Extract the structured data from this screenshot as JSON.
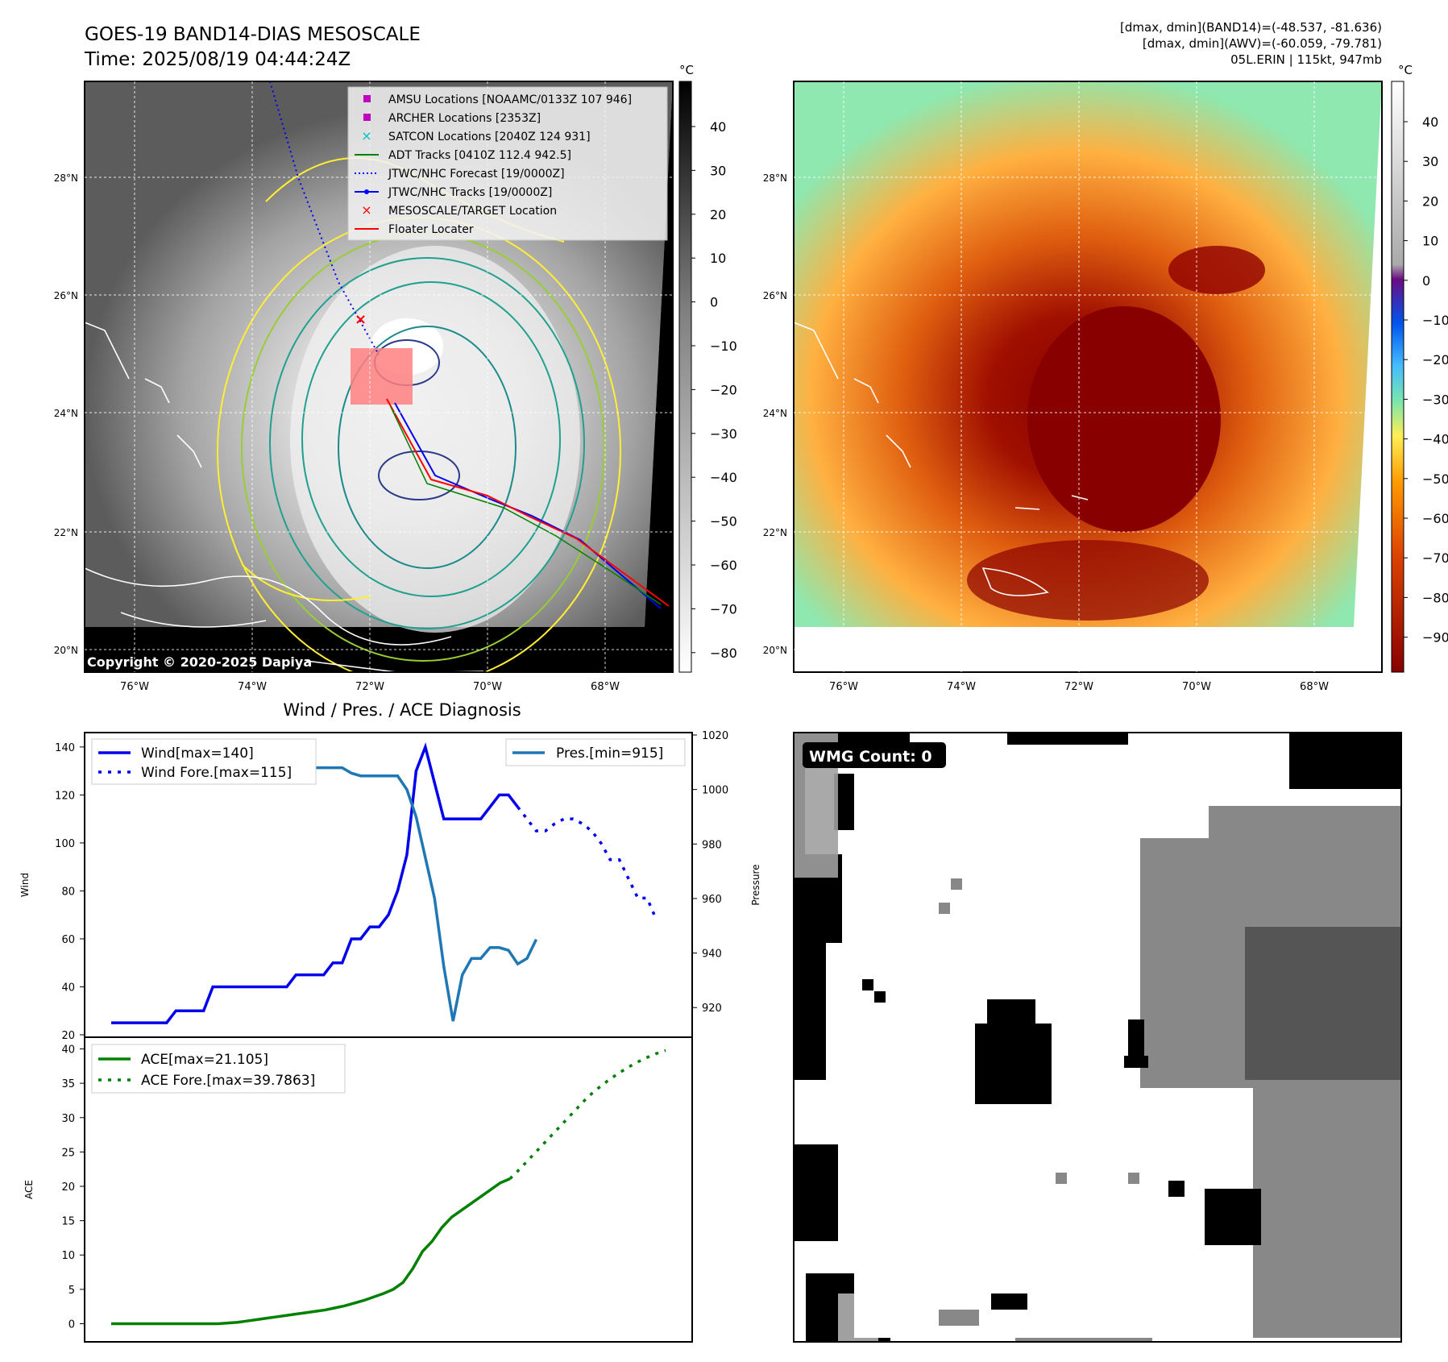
{
  "header": {
    "title_line1": "GOES-19 BAND14-DIAS MESOSCALE",
    "title_line2": "Time: 2025/08/19 04:44:24Z",
    "info_line1": "[dmax, dmin](BAND14)=(-48.537, -81.636)",
    "info_line2": "[dmax, dmin](AWV)=(-60.059, -79.781)",
    "info_line3": "05L.ERIN | 115kt, 947mb"
  },
  "copyright": "Copyright © 2020-2025 Dapiya",
  "colorbar_unit": "°C",
  "map_ticks": {
    "lon_labels": [
      "76°W",
      "74°W",
      "72°W",
      "70°W",
      "68°W"
    ],
    "lat_labels": [
      "28°N",
      "26°N",
      "24°N",
      "22°N",
      "20°N"
    ]
  },
  "colorbar1_ticks": [
    "40",
    "30",
    "20",
    "10",
    "0",
    "−10",
    "−20",
    "−30",
    "−40",
    "−50",
    "−60",
    "−70",
    "−80"
  ],
  "colorbar2_ticks": [
    "40",
    "30",
    "20",
    "10",
    "0",
    "−10",
    "−20",
    "−30",
    "−40",
    "−50",
    "−60",
    "−70",
    "−80",
    "−90"
  ],
  "map_legend": [
    {
      "label": "AMSU Locations [NOAAMC/0133Z 107 946]",
      "marker": "square",
      "color": "#c000c0"
    },
    {
      "label": "ARCHER Locations [2353Z]",
      "marker": "square",
      "color": "#c000c0"
    },
    {
      "label": "SATCON Locations [2040Z 124 931]",
      "marker": "x",
      "color": "#00c0c0"
    },
    {
      "label": "ADT Tracks [0410Z 112.4 942.5]",
      "marker": "line",
      "color": "#008000"
    },
    {
      "label": "JTWC/NHC Forecast [19/0000Z]",
      "marker": "dotted",
      "color": "#0000ff"
    },
    {
      "label": "JTWC/NHC Tracks [19/0000Z]",
      "marker": "line-dot",
      "color": "#0000ff"
    },
    {
      "label": "MESOSCALE/TARGET Location",
      "marker": "x",
      "color": "#ff0000"
    },
    {
      "label": "Floater Locater",
      "marker": "line",
      "color": "#ff0000"
    }
  ],
  "wmg_label": "WMG Count: 0",
  "diag_title": "Wind / Pres. / ACE Diagnosis",
  "chart_data": [
    {
      "type": "line",
      "title": "Wind / Pres. / ACE Diagnosis",
      "ylabel": "Wind",
      "y2label": "Pressure",
      "ylim": [
        20,
        145
      ],
      "y2lim": [
        910,
        1020
      ],
      "yticks": [
        "20",
        "40",
        "60",
        "80",
        "100",
        "120",
        "140"
      ],
      "y2ticks": [
        "920",
        "940",
        "960",
        "980",
        "1000",
        "1020"
      ],
      "series": [
        {
          "name": "Wind[max=140]",
          "color": "#0000ee",
          "style": "solid",
          "axis": "left",
          "values": [
            25,
            25,
            25,
            25,
            25,
            25,
            25,
            30,
            30,
            30,
            30,
            40,
            40,
            40,
            40,
            40,
            40,
            40,
            40,
            40,
            45,
            45,
            45,
            45,
            50,
            50,
            60,
            60,
            65,
            65,
            70,
            80,
            95,
            130,
            140,
            125,
            110,
            110,
            110,
            110,
            110,
            115,
            120,
            120,
            115
          ]
        },
        {
          "name": "Wind Fore.[max=115]",
          "color": "#0000ee",
          "style": "dotted",
          "axis": "left",
          "start": 44,
          "values": [
            115,
            110,
            105,
            105,
            108,
            110,
            110,
            108,
            105,
            100,
            93,
            93,
            85,
            77,
            77,
            68
          ]
        },
        {
          "name": "Pres.[min=915]",
          "color": "#1f77b4",
          "style": "solid",
          "axis": "right",
          "values": [
            1015,
            1015,
            1012,
            1011,
            1010,
            1010,
            1010,
            1010,
            1010,
            1010,
            1010,
            1010,
            1009,
            1009,
            1009,
            1009,
            1009,
            1009,
            1009,
            1008,
            1008,
            1008,
            1008,
            1008,
            1008,
            1008,
            1006,
            1005,
            1005,
            1005,
            1005,
            1005,
            1000,
            990,
            975,
            960,
            935,
            915,
            932,
            938,
            938,
            942,
            942,
            941,
            936,
            938,
            945
          ]
        }
      ]
    },
    {
      "type": "line",
      "ylabel": "ACE",
      "ylim": [
        -1,
        41
      ],
      "yticks": [
        "0",
        "5",
        "10",
        "15",
        "20",
        "25",
        "30",
        "35",
        "40"
      ],
      "series": [
        {
          "name": "ACE[max=21.105]",
          "color": "#008000",
          "style": "solid",
          "values": [
            0,
            0,
            0,
            0,
            0,
            0,
            0,
            0,
            0,
            0,
            0,
            0,
            0.1,
            0.2,
            0.4,
            0.6,
            0.8,
            1.0,
            1.2,
            1.4,
            1.6,
            1.8,
            2.0,
            2.3,
            2.6,
            3.0,
            3.4,
            3.9,
            4.4,
            5,
            6,
            8,
            10.5,
            12,
            14,
            15.5,
            16.5,
            17.5,
            18.5,
            19.5,
            20.5,
            21.105
          ]
        },
        {
          "name": "ACE Fore.[max=39.7863]",
          "color": "#008000",
          "style": "dotted",
          "start": 41,
          "values": [
            21.105,
            22.5,
            24,
            25.5,
            27,
            28.5,
            30,
            31.5,
            33,
            34.2,
            35.3,
            36.3,
            37.2,
            38,
            38.7,
            39.3,
            39.7863
          ]
        }
      ]
    }
  ]
}
